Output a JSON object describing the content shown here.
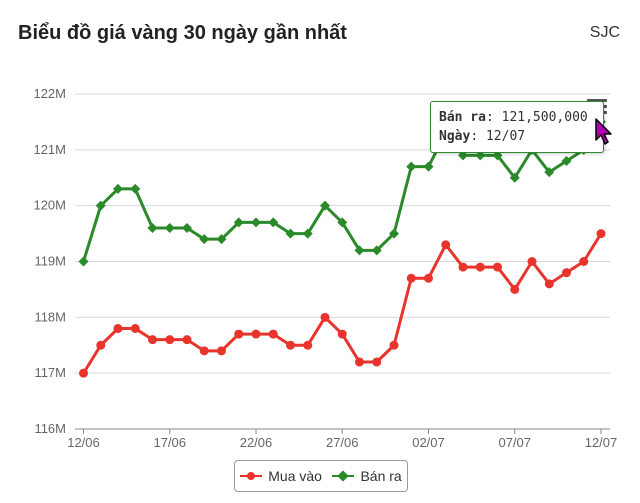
{
  "header": {
    "title": "Biểu đồ giá vàng 30 ngày gần nhất",
    "brand": "SJC"
  },
  "tooltip": {
    "label1": "Bán ra",
    "value1": "121,500,000",
    "label2": "Ngày",
    "value2": "12/07"
  },
  "legend": {
    "buy": "Mua vào",
    "sell": "Bán ra"
  },
  "colors": {
    "buy": "#e8342c",
    "sell": "#2a8a2a",
    "grid": "#d9d9d9"
  },
  "icons": {
    "menu": "hamburger-menu-icon",
    "cursor": "pointer-cursor-icon"
  },
  "chart_data": {
    "type": "line",
    "title": "Biểu đồ giá vàng 30 ngày gần nhất",
    "ylim": [
      116,
      122
    ],
    "yticks": [
      "116M",
      "117M",
      "118M",
      "119M",
      "120M",
      "121M",
      "122M"
    ],
    "xtick_labels": [
      "12/06",
      "17/06",
      "22/06",
      "27/06",
      "02/07",
      "07/07",
      "12/07"
    ],
    "x": [
      "12/06",
      "13/06",
      "14/06",
      "15/06",
      "16/06",
      "17/06",
      "18/06",
      "19/06",
      "20/06",
      "21/06",
      "22/06",
      "23/06",
      "24/06",
      "25/06",
      "26/06",
      "27/06",
      "28/06",
      "29/06",
      "30/06",
      "01/07",
      "02/07",
      "03/07",
      "04/07",
      "05/07",
      "06/07",
      "07/07",
      "08/07",
      "09/07",
      "10/07",
      "11/07",
      "12/07"
    ],
    "series": [
      {
        "name": "Mua vào",
        "values": [
          117.0,
          117.5,
          117.8,
          117.8,
          117.6,
          117.6,
          117.6,
          117.4,
          117.4,
          117.7,
          117.7,
          117.7,
          117.5,
          117.5,
          118.0,
          117.7,
          117.2,
          117.2,
          117.5,
          118.7,
          118.7,
          119.3,
          118.9,
          118.9,
          118.9,
          118.5,
          119.0,
          118.6,
          118.8,
          119.0,
          119.5
        ]
      },
      {
        "name": "Bán ra",
        "values": [
          119.0,
          120.0,
          120.3,
          120.3,
          119.6,
          119.6,
          119.6,
          119.4,
          119.4,
          119.7,
          119.7,
          119.7,
          119.5,
          119.5,
          120.0,
          119.7,
          119.2,
          119.2,
          119.5,
          120.7,
          120.7,
          121.3,
          120.9,
          120.9,
          120.9,
          120.5,
          121.0,
          120.6,
          120.8,
          121.0,
          121.5
        ]
      }
    ],
    "grid": true,
    "legend_position": "bottom-center"
  }
}
